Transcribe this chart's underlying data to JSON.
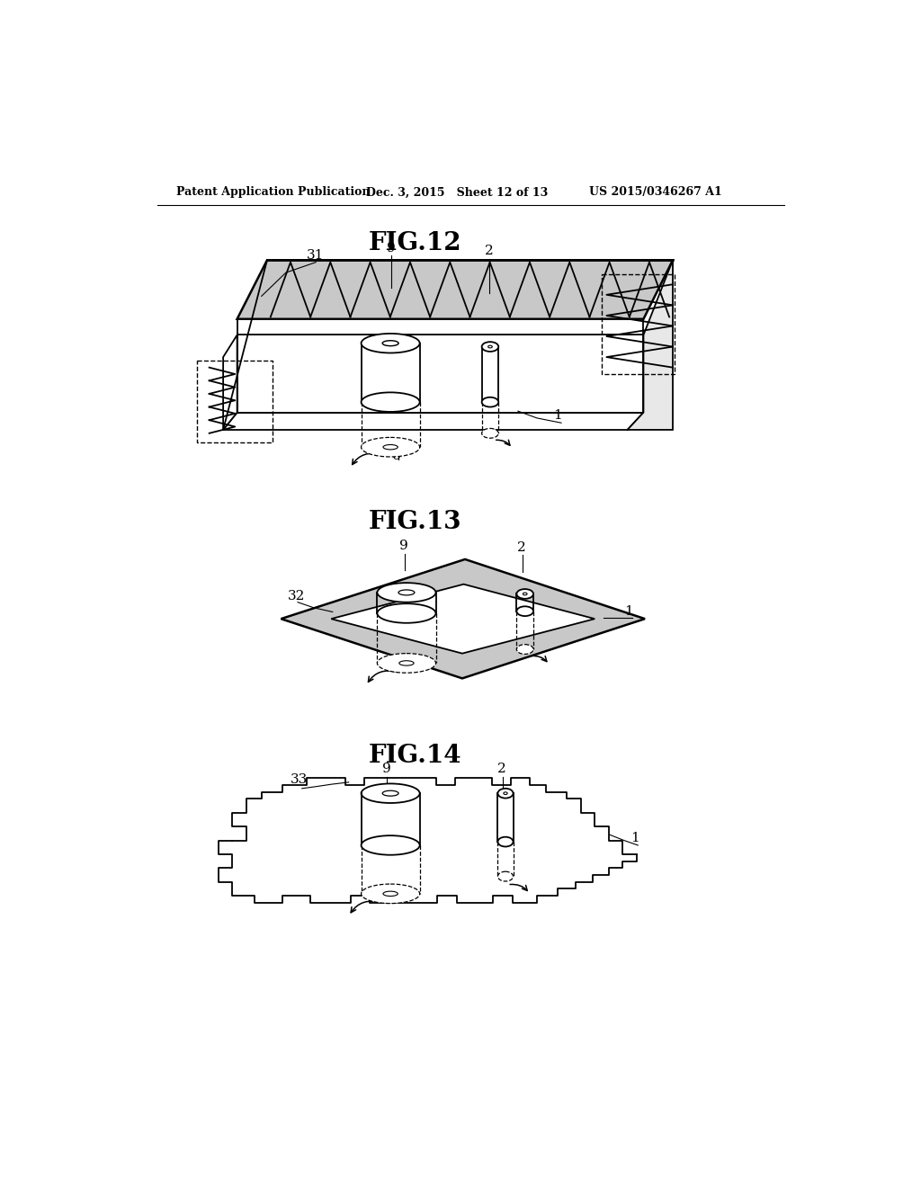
{
  "header_left": "Patent Application Publication",
  "header_mid": "Dec. 3, 2015   Sheet 12 of 13",
  "header_right": "US 2015/0346267 A1",
  "fig12_title": "FIG.12",
  "fig13_title": "FIG.13",
  "fig14_title": "FIG.14",
  "bg_color": "#ffffff",
  "line_color": "#000000",
  "gray_fill": "#c8c8c8",
  "light_gray": "#e8e8e8"
}
